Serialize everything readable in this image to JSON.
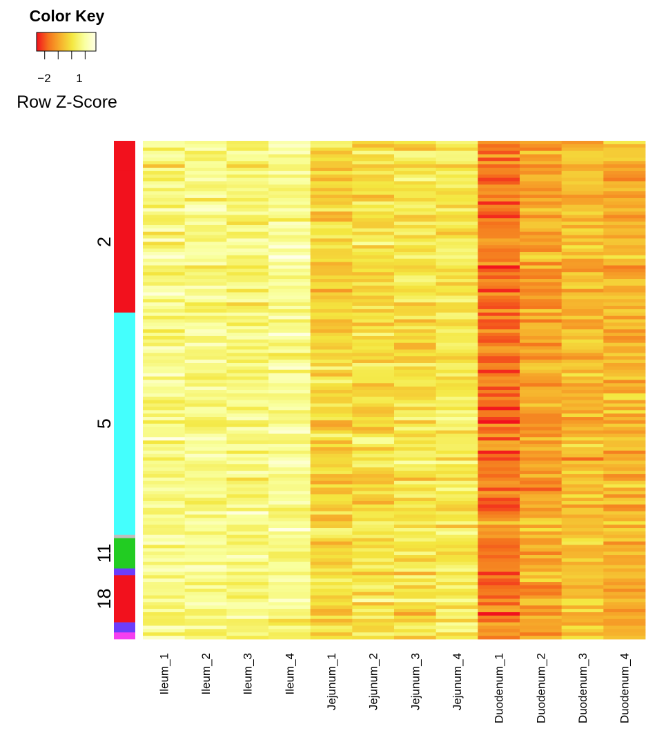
{
  "chart_data": {
    "type": "heatmap",
    "color_key": {
      "title": "Color Key",
      "scale_label": "Row Z-Score",
      "ticks": [
        "−2",
        "1"
      ],
      "tick_values": [
        -2,
        1
      ],
      "range": [
        -2.6,
        1.8
      ],
      "colors": [
        "#f2111d",
        "#f5731d",
        "#f6b02c",
        "#f4e740",
        "#f9ff9c",
        "#ffffe8"
      ]
    },
    "columns": [
      "Ileum_1",
      "Ileum_2",
      "Ileum_3",
      "Ileum_4",
      "Jejunum_1",
      "Jejunum_2",
      "Jejunum_3",
      "Jejunum_4",
      "Duodenum_1",
      "Duodenum_2",
      "Duodenum_3",
      "Duodenum_4"
    ],
    "column_mean_zscores": [
      0.7,
      0.75,
      0.6,
      0.85,
      -0.2,
      -0.05,
      0.0,
      0.15,
      -1.6,
      -1.0,
      -0.6,
      -0.8
    ],
    "row_count": 148,
    "row_clusters": [
      {
        "label": "",
        "rows": 9,
        "color": "#f2111d"
      },
      {
        "label": "2",
        "rows": 42,
        "color": "#f2111d"
      },
      {
        "label": "5",
        "rows": 66,
        "color": "#44fffd"
      },
      {
        "label": "",
        "rows": 1,
        "color": "#bebebe"
      },
      {
        "label": "11",
        "rows": 9,
        "color": "#22cc22"
      },
      {
        "label": "",
        "rows": 2,
        "color": "#6c3dfb"
      },
      {
        "label": "18",
        "rows": 14,
        "color": "#f2111d"
      },
      {
        "label": "",
        "rows": 3,
        "color": "#6c3dfb"
      },
      {
        "label": "",
        "rows": 2,
        "color": "#f53ff0"
      }
    ]
  }
}
